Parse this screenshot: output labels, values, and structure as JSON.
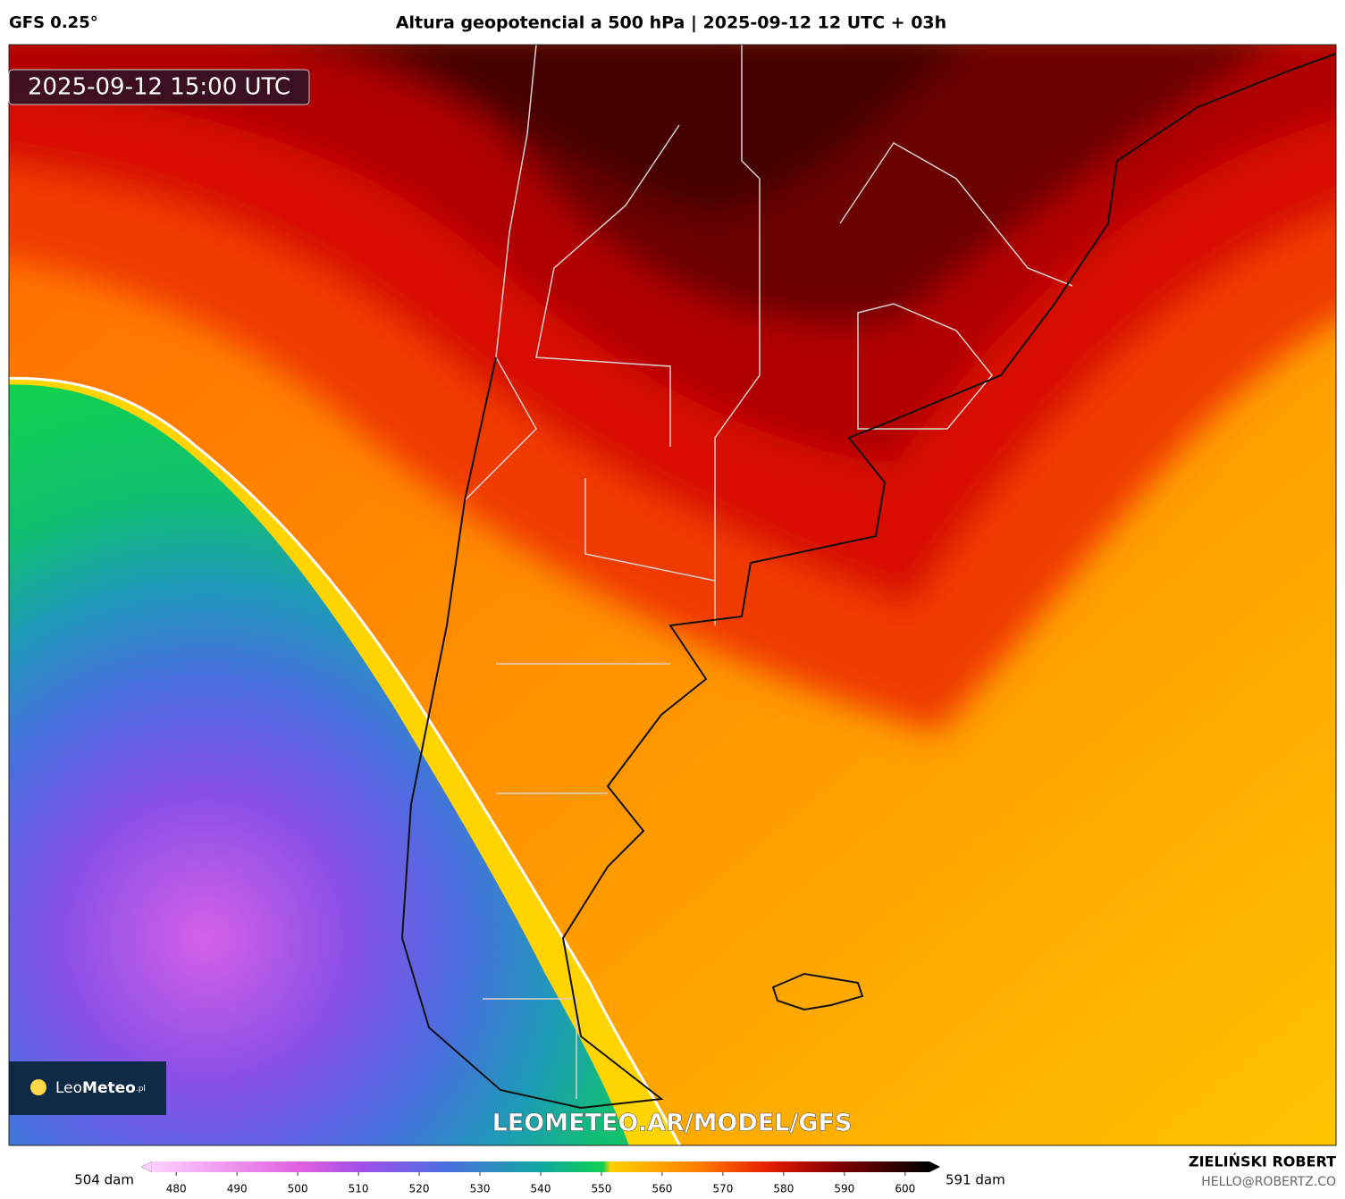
{
  "header": {
    "model": "GFS 0.25°",
    "title": "Altura geopotencial a 500 hPa | 2025-09-12 12 UTC + 03h"
  },
  "timestamp": "2025-09-12 15:00 UTC",
  "logo": {
    "light": "Leo",
    "bold": "Meteo",
    "suffix": ".pl"
  },
  "watermark": "LEOMETEO.AR/MODEL/GFS",
  "colorbar": {
    "range": [
      476,
      604
    ],
    "ticks": [
      480,
      490,
      500,
      510,
      520,
      530,
      540,
      550,
      560,
      570,
      580,
      590,
      600
    ],
    "min_label": "504 dam",
    "max_label": "591 dam"
  },
  "credit": {
    "author": "ZIELIŃSKI ROBERT",
    "email": "HELLO@ROBERTZ.CO"
  }
}
